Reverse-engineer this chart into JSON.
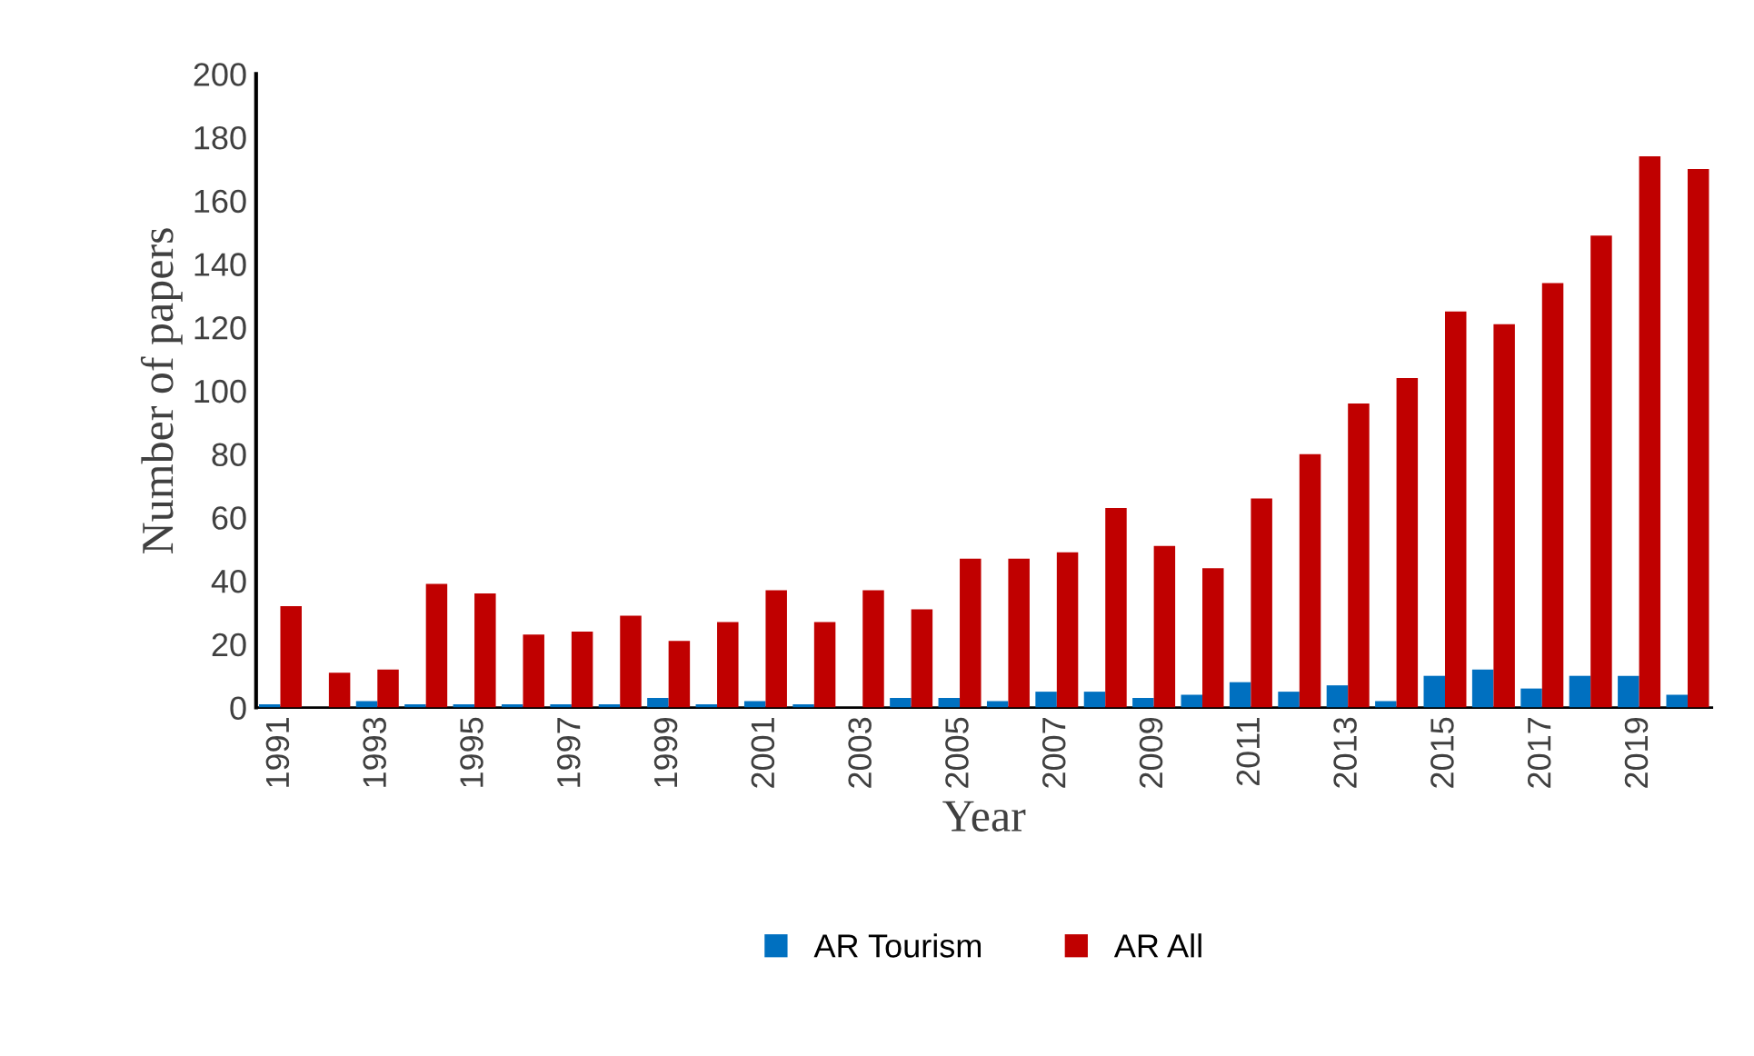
{
  "chart_data": {
    "type": "bar",
    "xlabel": "Year",
    "ylabel": "Number of papers",
    "categories": [
      "1991",
      null,
      "1993",
      null,
      "1995",
      null,
      "1997",
      null,
      "1999",
      null,
      "2001",
      null,
      "2003",
      null,
      "2005",
      null,
      "2007",
      null,
      "2009",
      null,
      "2011",
      null,
      "2013",
      null,
      "2015",
      null,
      "2017",
      null,
      "2019",
      null
    ],
    "series": [
      {
        "name": "AR Tourism",
        "color": "#0070c0",
        "values": [
          1,
          0,
          2,
          1,
          1,
          1,
          1,
          1,
          3,
          1,
          2,
          1,
          0,
          3,
          3,
          2,
          5,
          5,
          3,
          4,
          8,
          5,
          7,
          2,
          10,
          12,
          6,
          10,
          10,
          4
        ]
      },
      {
        "name": "AR All",
        "color": "#c00000",
        "values": [
          32,
          11,
          12,
          39,
          36,
          23,
          24,
          29,
          21,
          27,
          37,
          27,
          37,
          31,
          47,
          47,
          49,
          63,
          51,
          44,
          66,
          80,
          96,
          104,
          125,
          121,
          134,
          149,
          174,
          170
        ]
      }
    ],
    "ylim": [
      0,
      200
    ],
    "yticks": [
      0,
      20,
      40,
      60,
      80,
      100,
      120,
      140,
      160,
      180,
      200
    ],
    "grid": false,
    "legend": "bottom"
  }
}
